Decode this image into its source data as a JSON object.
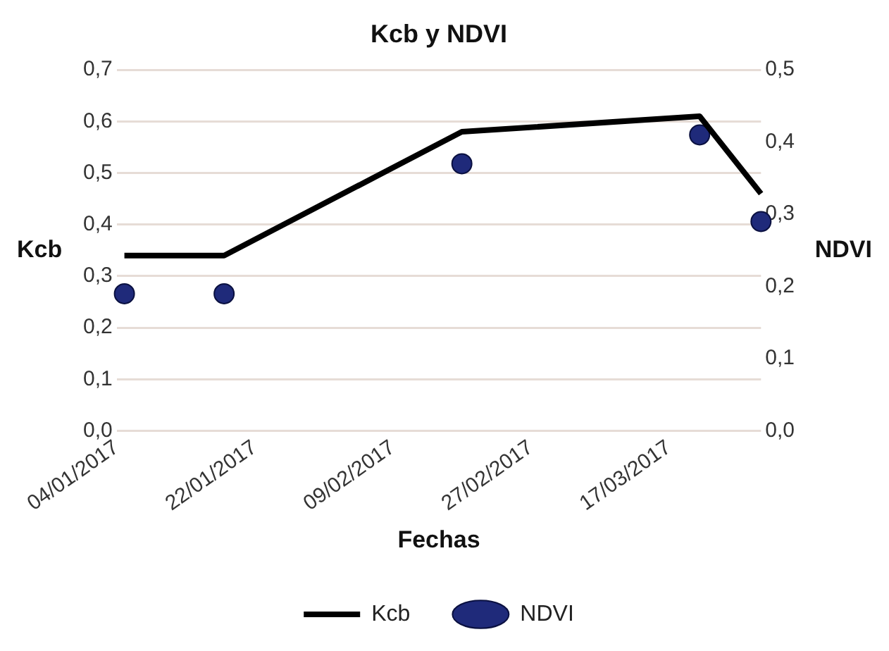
{
  "chart_data": {
    "type": "line",
    "title": "Kcb y NDVI",
    "xlabel": "Fechas",
    "ylabel": "Kcb",
    "y2label": "NDVI",
    "x": [
      "2017-01-05",
      "2017-01-18",
      "2017-02-18",
      "2017-03-21",
      "2017-03-29"
    ],
    "series": [
      {
        "name": "Kcb",
        "color": "#000000",
        "values": [
          0.34,
          0.34,
          0.58,
          0.61,
          0.46
        ],
        "marker": "none"
      },
      {
        "name": "NDVI",
        "type": "scatter",
        "color": "#1f2a7a",
        "values": [
          0.19,
          0.19,
          0.37,
          0.41,
          0.29
        ],
        "axis": "y2",
        "marker": "circle"
      }
    ],
    "xlim": [
      "2017-01-04",
      "2017-03-29"
    ],
    "xticks": [
      {
        "value": "2017-01-04",
        "label": "04/01/2017"
      },
      {
        "value": "2017-01-22",
        "label": "22/01/2017"
      },
      {
        "value": "2017-02-09",
        "label": "09/02/2017"
      },
      {
        "value": "2017-02-27",
        "label": "27/02/2017"
      },
      {
        "value": "2017-03-17",
        "label": "17/03/2017"
      }
    ],
    "ylim": [
      0,
      0.7
    ],
    "yticks": [
      {
        "value": 0,
        "label": "0,0"
      },
      {
        "value": 0.1,
        "label": "0,1"
      },
      {
        "value": 0.2,
        "label": "0,2"
      },
      {
        "value": 0.3,
        "label": "0,3"
      },
      {
        "value": 0.4,
        "label": "0,4"
      },
      {
        "value": 0.5,
        "label": "0,5"
      },
      {
        "value": 0.6,
        "label": "0,6"
      },
      {
        "value": 0.7,
        "label": "0,7"
      }
    ],
    "y2lim": [
      0,
      0.5
    ],
    "y2ticks": [
      {
        "value": 0,
        "label": "0,0"
      },
      {
        "value": 0.1,
        "label": "0,1"
      },
      {
        "value": 0.2,
        "label": "0,2"
      },
      {
        "value": 0.3,
        "label": "0,3"
      },
      {
        "value": 0.4,
        "label": "0,4"
      },
      {
        "value": 0.5,
        "label": "0,5"
      }
    ],
    "grid": "y",
    "legend": "bottom"
  }
}
